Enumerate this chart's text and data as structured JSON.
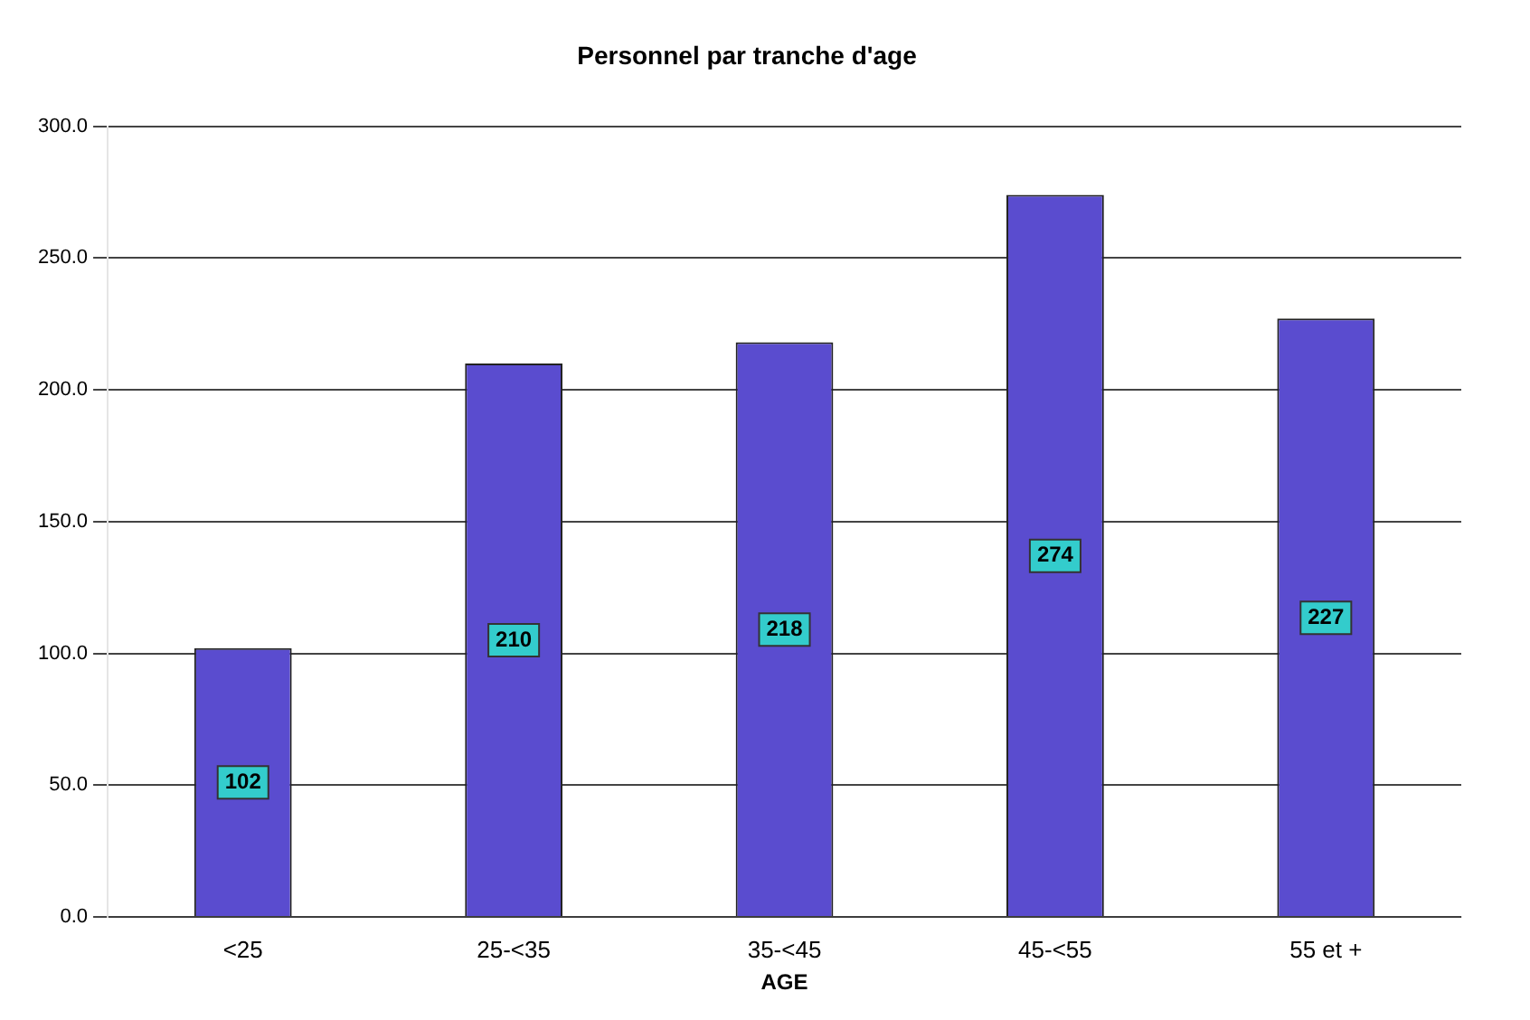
{
  "chart_data": {
    "type": "bar",
    "title": "Personnel par tranche d'age",
    "xlabel": "AGE",
    "categories": [
      "<25",
      "25-<35",
      "35-<45",
      "45-<55",
      "55 et +"
    ],
    "values": [
      102,
      210,
      218,
      274,
      227
    ],
    "color": "#5a4ccf",
    "ylim": [
      0,
      300
    ],
    "yticks": [
      {
        "value": 0,
        "label": "0.0"
      },
      {
        "value": 50,
        "label": "50.0"
      },
      {
        "value": 100,
        "label": "100.0"
      },
      {
        "value": 150,
        "label": "150.0"
      },
      {
        "value": 200,
        "label": "200.0"
      },
      {
        "value": 250,
        "label": "250.0"
      },
      {
        "value": 300,
        "label": "300.0"
      }
    ],
    "grid": "y",
    "data_labels": true
  }
}
